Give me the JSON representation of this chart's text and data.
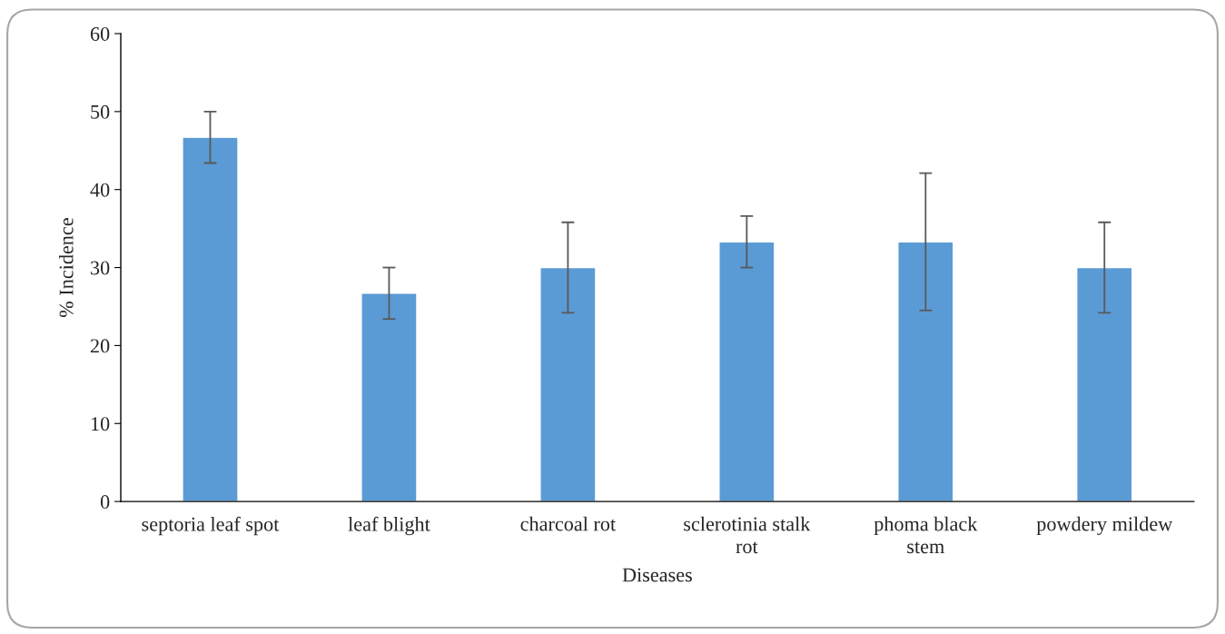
{
  "chart_data": {
    "type": "bar",
    "xlabel": "Diseases",
    "ylabel": "% Incidence",
    "categories": [
      "septoria leaf spot",
      "leaf blight",
      "charcoal rot",
      "sclerotinia stalk\nrot",
      "phoma black\nstem",
      "powdery mildew"
    ],
    "values": [
      46.7,
      26.7,
      30.0,
      33.3,
      33.3,
      30.0
    ],
    "errors": [
      3.3,
      3.3,
      5.8,
      3.3,
      8.8,
      5.8
    ],
    "color": "#5b9bd5",
    "ylim": [
      0,
      60
    ],
    "yticks": [
      0,
      10,
      20,
      30,
      40,
      50,
      60
    ],
    "grid": false,
    "legend": false
  }
}
